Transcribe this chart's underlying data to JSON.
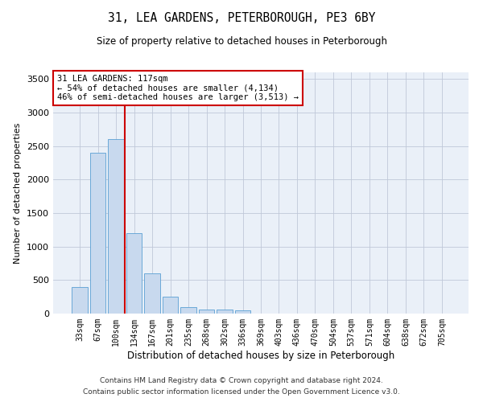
{
  "title": "31, LEA GARDENS, PETERBOROUGH, PE3 6BY",
  "subtitle": "Size of property relative to detached houses in Peterborough",
  "xlabel": "Distribution of detached houses by size in Peterborough",
  "ylabel": "Number of detached properties",
  "footer_line1": "Contains HM Land Registry data © Crown copyright and database right 2024.",
  "footer_line2": "Contains public sector information licensed under the Open Government Licence v3.0.",
  "categories": [
    "33sqm",
    "67sqm",
    "100sqm",
    "134sqm",
    "167sqm",
    "201sqm",
    "235sqm",
    "268sqm",
    "302sqm",
    "336sqm",
    "369sqm",
    "403sqm",
    "436sqm",
    "470sqm",
    "504sqm",
    "537sqm",
    "571sqm",
    "604sqm",
    "638sqm",
    "672sqm",
    "705sqm"
  ],
  "values": [
    400,
    2400,
    2600,
    1200,
    600,
    250,
    100,
    60,
    55,
    50,
    0,
    0,
    0,
    0,
    0,
    0,
    0,
    0,
    0,
    0,
    0
  ],
  "bar_color": "#c8d9ee",
  "bar_edge_color": "#5a9fd4",
  "grid_color": "#c0c8d8",
  "background_color": "#eaf0f8",
  "annotation_box_text": "31 LEA GARDENS: 117sqm\n← 54% of detached houses are smaller (4,134)\n46% of semi-detached houses are larger (3,513) →",
  "vline_color": "#cc0000",
  "ylim": [
    0,
    3600
  ],
  "yticks": [
    0,
    500,
    1000,
    1500,
    2000,
    2500,
    3000,
    3500
  ]
}
